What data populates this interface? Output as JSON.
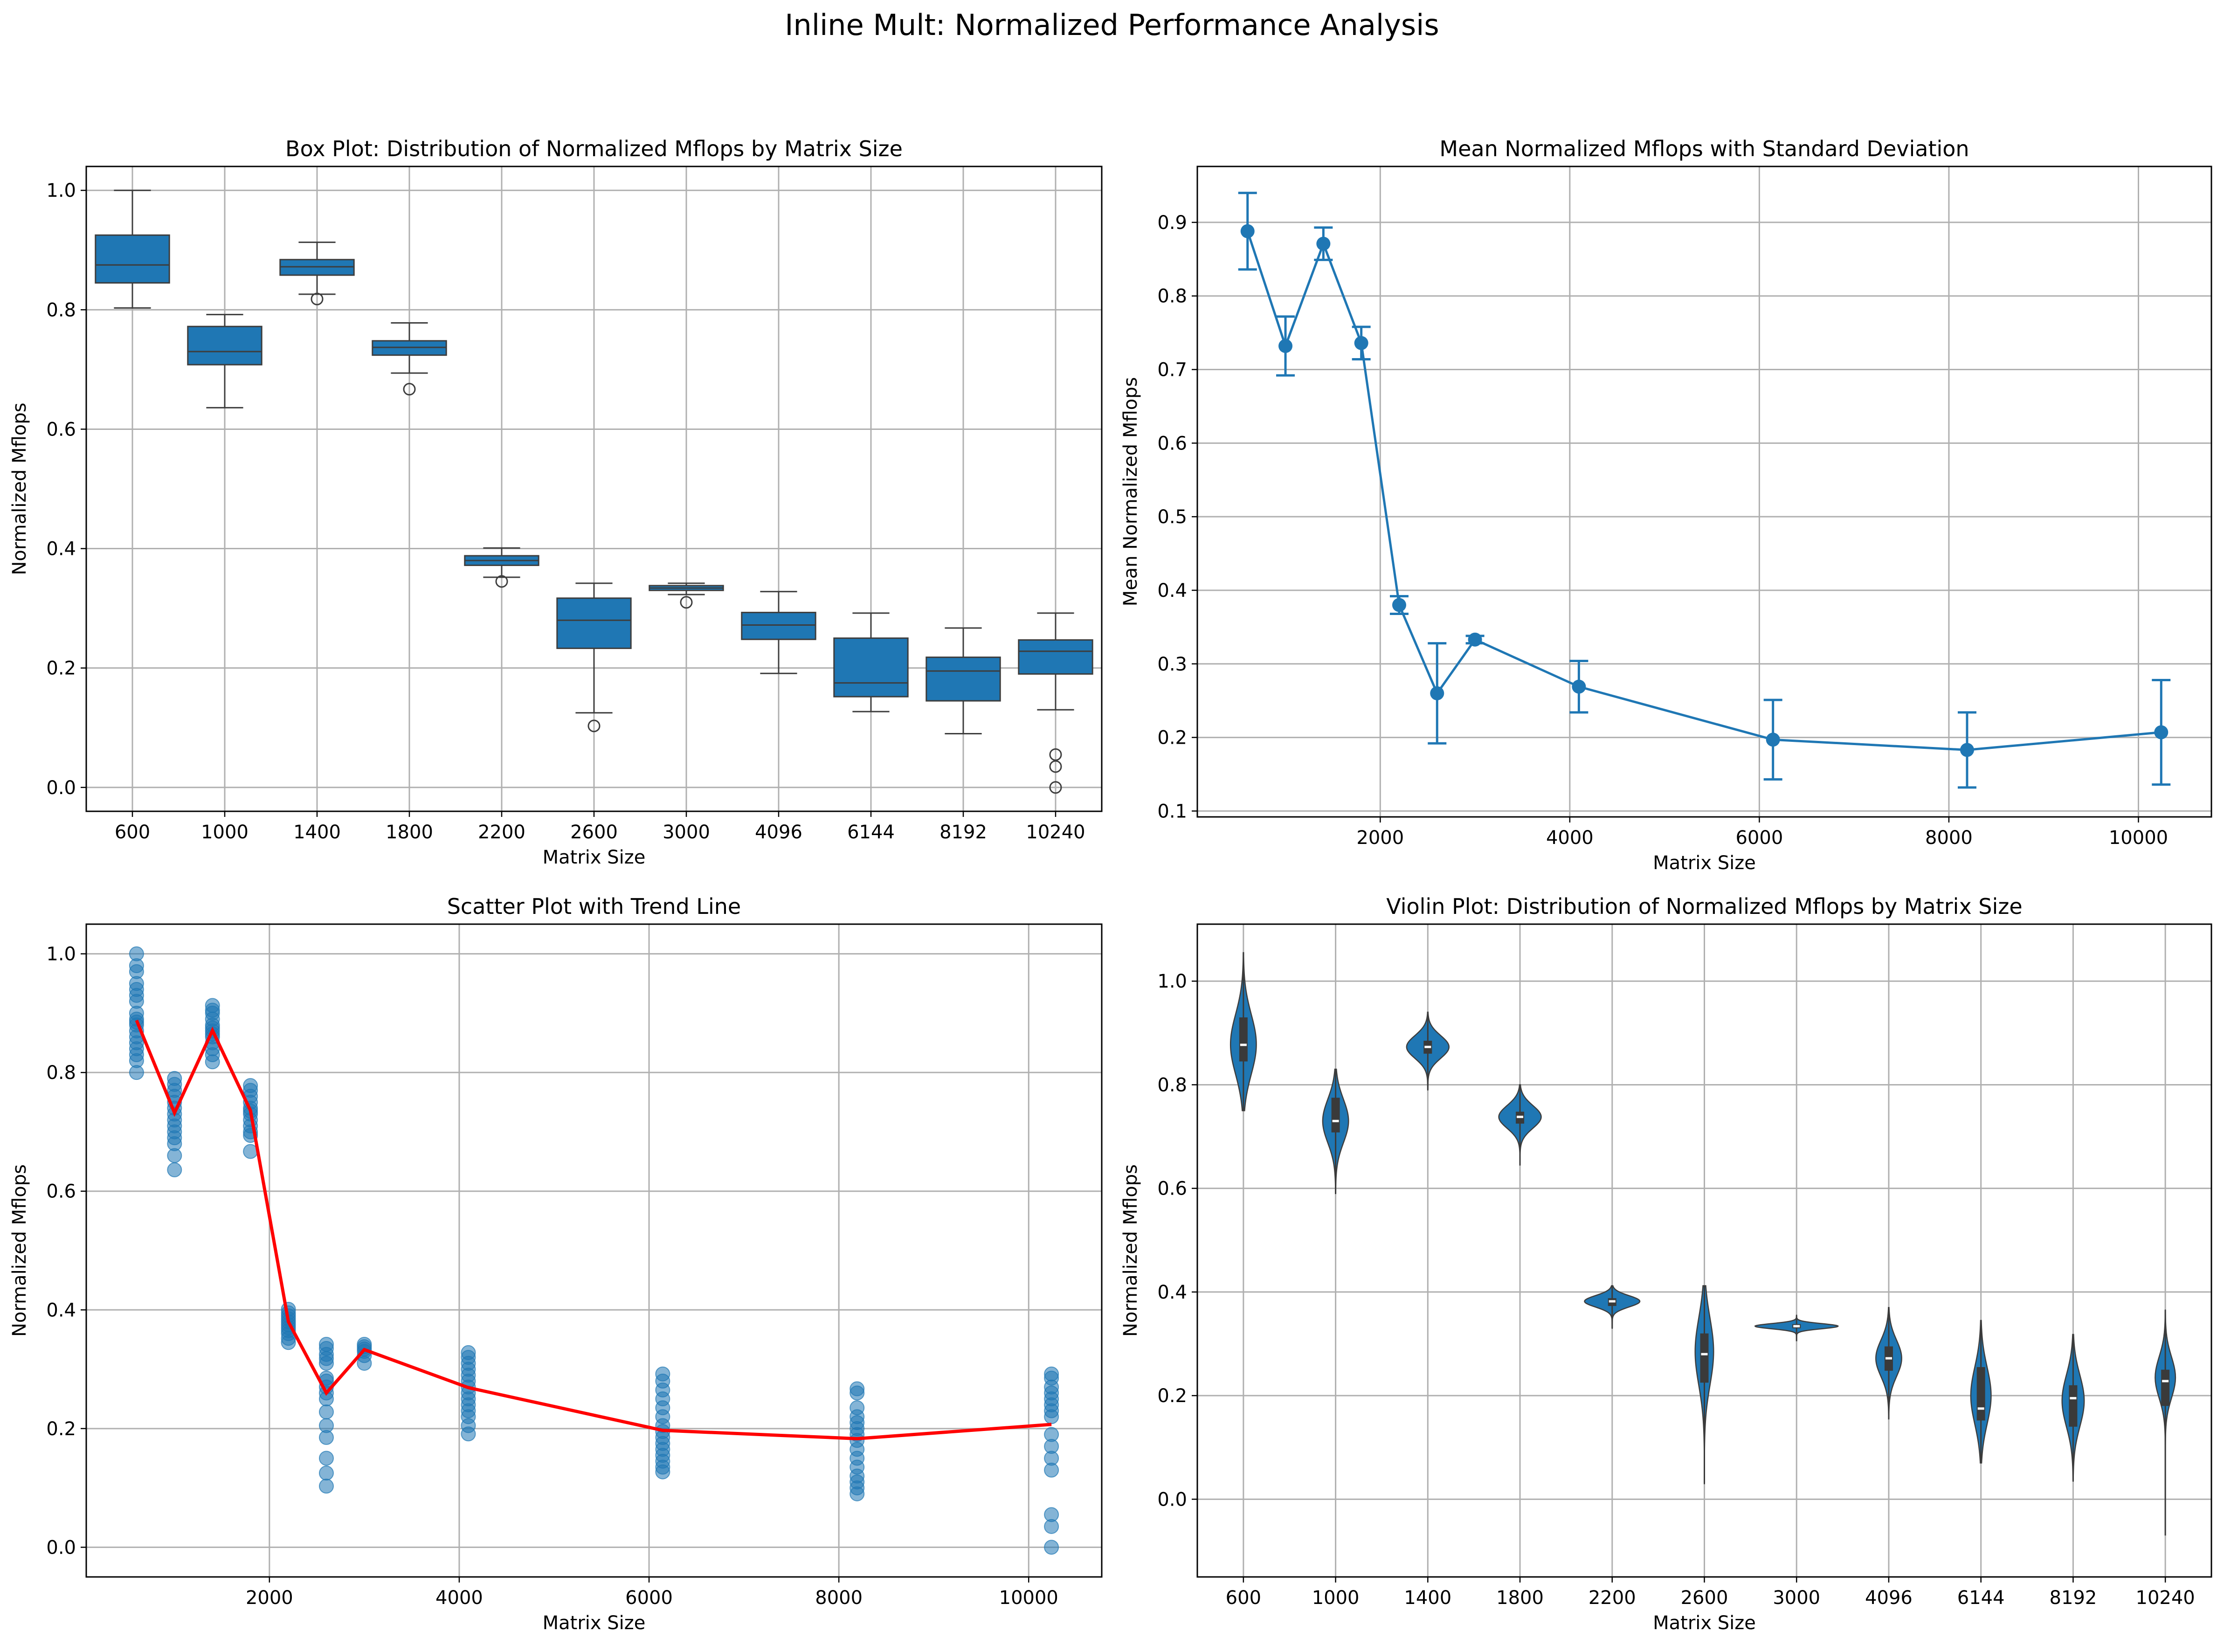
{
  "figure_title": "Inline Mult: Normalized Performance Analysis",
  "colors": {
    "series": "#1f77b4",
    "trend": "#ff0000",
    "grid": "#b0b0b0",
    "violin_inner": "#3a3a3a"
  },
  "chart_data": [
    {
      "id": "box",
      "type": "box",
      "title": "Box Plot: Distribution of Normalized Mflops by Matrix Size",
      "xlabel": "Matrix Size",
      "ylabel": "Normalized Mflops",
      "categories": [
        "600",
        "1000",
        "1400",
        "1800",
        "2200",
        "2600",
        "3000",
        "4096",
        "6144",
        "8192",
        "10240"
      ],
      "ylim": [
        -0.04,
        1.04
      ],
      "yticks": [
        "0.0",
        "0.2",
        "0.4",
        "0.6",
        "0.8",
        "1.0"
      ],
      "grid": true,
      "boxes": [
        {
          "whislo": 0.803,
          "q1": 0.845,
          "med": 0.875,
          "q3": 0.925,
          "whishi": 1.0,
          "fliers": []
        },
        {
          "whislo": 0.636,
          "q1": 0.708,
          "med": 0.73,
          "q3": 0.772,
          "whishi": 0.792,
          "fliers": []
        },
        {
          "whislo": 0.826,
          "q1": 0.858,
          "med": 0.872,
          "q3": 0.884,
          "whishi": 0.913,
          "fliers": [
            0.818
          ]
        },
        {
          "whislo": 0.694,
          "q1": 0.724,
          "med": 0.737,
          "q3": 0.748,
          "whishi": 0.778,
          "fliers": [
            0.667
          ]
        },
        {
          "whislo": 0.352,
          "q1": 0.372,
          "med": 0.38,
          "q3": 0.388,
          "whishi": 0.401,
          "fliers": [
            0.345
          ]
        },
        {
          "whislo": 0.125,
          "q1": 0.233,
          "med": 0.28,
          "q3": 0.317,
          "whishi": 0.342,
          "fliers": [
            0.103
          ]
        },
        {
          "whislo": 0.323,
          "q1": 0.33,
          "med": 0.334,
          "q3": 0.338,
          "whishi": 0.342,
          "fliers": [
            0.31
          ]
        },
        {
          "whislo": 0.191,
          "q1": 0.248,
          "med": 0.272,
          "q3": 0.293,
          "whishi": 0.328,
          "fliers": []
        },
        {
          "whislo": 0.127,
          "q1": 0.152,
          "med": 0.175,
          "q3": 0.25,
          "whishi": 0.292,
          "fliers": []
        },
        {
          "whislo": 0.09,
          "q1": 0.145,
          "med": 0.195,
          "q3": 0.218,
          "whishi": 0.267,
          "fliers": []
        },
        {
          "whislo": 0.13,
          "q1": 0.19,
          "med": 0.228,
          "q3": 0.247,
          "whishi": 0.292,
          "fliers": [
            0.055,
            0.035,
            0.0
          ]
        }
      ]
    },
    {
      "id": "errorbar",
      "type": "line",
      "title": "Mean Normalized Mflops with Standard Deviation",
      "xlabel": "Matrix Size",
      "ylabel": "Mean Normalized Mflops",
      "x": [
        600,
        1000,
        1400,
        1800,
        2200,
        2600,
        3000,
        4096,
        6144,
        8192,
        10240
      ],
      "y": [
        0.888,
        0.732,
        0.871,
        0.736,
        0.38,
        0.26,
        0.333,
        0.269,
        0.197,
        0.183,
        0.207
      ],
      "yerr": [
        0.052,
        0.04,
        0.022,
        0.022,
        0.012,
        0.068,
        0.005,
        0.035,
        0.054,
        0.051,
        0.071
      ],
      "xlim": [
        70,
        10770
      ],
      "ylim": [
        0.092,
        0.976
      ],
      "xticks": [
        "2000",
        "4000",
        "6000",
        "8000",
        "10000"
      ],
      "yticks": [
        "0.1",
        "0.2",
        "0.3",
        "0.4",
        "0.5",
        "0.6",
        "0.7",
        "0.8",
        "0.9"
      ],
      "grid": true
    },
    {
      "id": "scatter",
      "type": "scatter",
      "title": "Scatter Plot with Trend Line",
      "xlabel": "Matrix Size",
      "ylabel": "Normalized Mflops",
      "xlim": [
        70,
        10770
      ],
      "ylim": [
        -0.05,
        1.05
      ],
      "xticks": [
        "2000",
        "4000",
        "6000",
        "8000",
        "10000"
      ],
      "yticks": [
        "0.0",
        "0.2",
        "0.4",
        "0.6",
        "0.8",
        "1.0"
      ],
      "grid": true,
      "groups": [
        {
          "x": 600,
          "values": [
            1.0,
            0.98,
            0.97,
            0.95,
            0.94,
            0.93,
            0.92,
            0.9,
            0.89,
            0.885,
            0.88,
            0.87,
            0.86,
            0.85,
            0.84,
            0.83,
            0.82,
            0.8
          ]
        },
        {
          "x": 1000,
          "values": [
            0.79,
            0.78,
            0.77,
            0.76,
            0.75,
            0.74,
            0.73,
            0.72,
            0.71,
            0.7,
            0.69,
            0.68,
            0.66,
            0.636
          ]
        },
        {
          "x": 1400,
          "values": [
            0.913,
            0.905,
            0.9,
            0.89,
            0.88,
            0.875,
            0.87,
            0.865,
            0.86,
            0.85,
            0.84,
            0.83,
            0.818
          ]
        },
        {
          "x": 1800,
          "values": [
            0.778,
            0.77,
            0.76,
            0.75,
            0.74,
            0.735,
            0.73,
            0.72,
            0.71,
            0.7,
            0.694,
            0.667
          ]
        },
        {
          "x": 2200,
          "values": [
            0.401,
            0.395,
            0.39,
            0.385,
            0.38,
            0.375,
            0.37,
            0.365,
            0.36,
            0.352,
            0.345
          ]
        },
        {
          "x": 2600,
          "values": [
            0.342,
            0.335,
            0.325,
            0.318,
            0.31,
            0.285,
            0.28,
            0.27,
            0.26,
            0.25,
            0.228,
            0.205,
            0.185,
            0.15,
            0.125,
            0.103
          ]
        },
        {
          "x": 3000,
          "values": [
            0.342,
            0.338,
            0.334,
            0.33,
            0.323,
            0.31
          ]
        },
        {
          "x": 4096,
          "values": [
            0.328,
            0.32,
            0.31,
            0.3,
            0.29,
            0.28,
            0.27,
            0.26,
            0.25,
            0.24,
            0.23,
            0.22,
            0.205,
            0.191
          ]
        },
        {
          "x": 6144,
          "values": [
            0.292,
            0.28,
            0.265,
            0.25,
            0.235,
            0.22,
            0.205,
            0.195,
            0.185,
            0.175,
            0.165,
            0.155,
            0.145,
            0.135,
            0.127
          ]
        },
        {
          "x": 8192,
          "values": [
            0.267,
            0.26,
            0.235,
            0.22,
            0.21,
            0.2,
            0.19,
            0.18,
            0.165,
            0.15,
            0.135,
            0.12,
            0.11,
            0.1,
            0.09
          ]
        },
        {
          "x": 10240,
          "values": [
            0.292,
            0.285,
            0.27,
            0.26,
            0.25,
            0.24,
            0.23,
            0.22,
            0.19,
            0.17,
            0.15,
            0.13,
            0.055,
            0.035,
            0.0
          ]
        }
      ],
      "trend": {
        "x": [
          600,
          1000,
          1400,
          1800,
          2200,
          2600,
          3000,
          4096,
          6144,
          8192,
          10240
        ],
        "y": [
          0.888,
          0.732,
          0.871,
          0.736,
          0.38,
          0.26,
          0.333,
          0.269,
          0.197,
          0.183,
          0.207
        ]
      }
    },
    {
      "id": "violin",
      "type": "violin",
      "title": "Violin Plot: Distribution of Normalized Mflops by Matrix Size",
      "xlabel": "Matrix Size",
      "ylabel": "Normalized Mflops",
      "categories": [
        "600",
        "1000",
        "1400",
        "1800",
        "2200",
        "2600",
        "3000",
        "4096",
        "6144",
        "8192",
        "10240"
      ],
      "ylim": [
        -0.15,
        1.11
      ],
      "yticks": [
        "0.0",
        "0.2",
        "0.4",
        "0.6",
        "0.8",
        "1.0"
      ],
      "grid": true,
      "violins": [
        {
          "mean": 0.878,
          "sd": 0.058,
          "halfwidth": 0.14,
          "lo": 0.75,
          "hi": 1.055,
          "q1": 0.845,
          "med": 0.877,
          "q3": 0.93
        },
        {
          "mean": 0.73,
          "sd": 0.042,
          "halfwidth": 0.14,
          "lo": 0.59,
          "hi": 0.83,
          "q1": 0.708,
          "med": 0.73,
          "q3": 0.775
        },
        {
          "mean": 0.873,
          "sd": 0.022,
          "halfwidth": 0.23,
          "lo": 0.79,
          "hi": 0.94,
          "q1": 0.86,
          "med": 0.873,
          "q3": 0.885
        },
        {
          "mean": 0.738,
          "sd": 0.022,
          "halfwidth": 0.23,
          "lo": 0.645,
          "hi": 0.8,
          "q1": 0.725,
          "med": 0.738,
          "q3": 0.748
        },
        {
          "mean": 0.382,
          "sd": 0.011,
          "halfwidth": 0.3,
          "lo": 0.33,
          "hi": 0.412,
          "q1": 0.373,
          "med": 0.382,
          "q3": 0.388
        },
        {
          "mean": 0.285,
          "sd": 0.065,
          "halfwidth": 0.1,
          "lo": 0.03,
          "hi": 0.412,
          "q1": 0.225,
          "med": 0.28,
          "q3": 0.32
        },
        {
          "mean": 0.334,
          "sd": 0.005,
          "halfwidth": 0.45,
          "lo": 0.305,
          "hi": 0.355,
          "q1": 0.33,
          "med": 0.334,
          "q3": 0.338
        },
        {
          "mean": 0.272,
          "sd": 0.035,
          "halfwidth": 0.14,
          "lo": 0.155,
          "hi": 0.37,
          "q1": 0.248,
          "med": 0.272,
          "q3": 0.295
        },
        {
          "mean": 0.2,
          "sd": 0.055,
          "halfwidth": 0.11,
          "lo": 0.07,
          "hi": 0.345,
          "q1": 0.152,
          "med": 0.175,
          "q3": 0.255
        },
        {
          "mean": 0.19,
          "sd": 0.05,
          "halfwidth": 0.12,
          "lo": 0.035,
          "hi": 0.318,
          "q1": 0.14,
          "med": 0.195,
          "q3": 0.22
        },
        {
          "mean": 0.235,
          "sd": 0.04,
          "halfwidth": 0.11,
          "lo": -0.07,
          "hi": 0.365,
          "q1": 0.18,
          "med": 0.228,
          "q3": 0.25
        }
      ]
    }
  ]
}
